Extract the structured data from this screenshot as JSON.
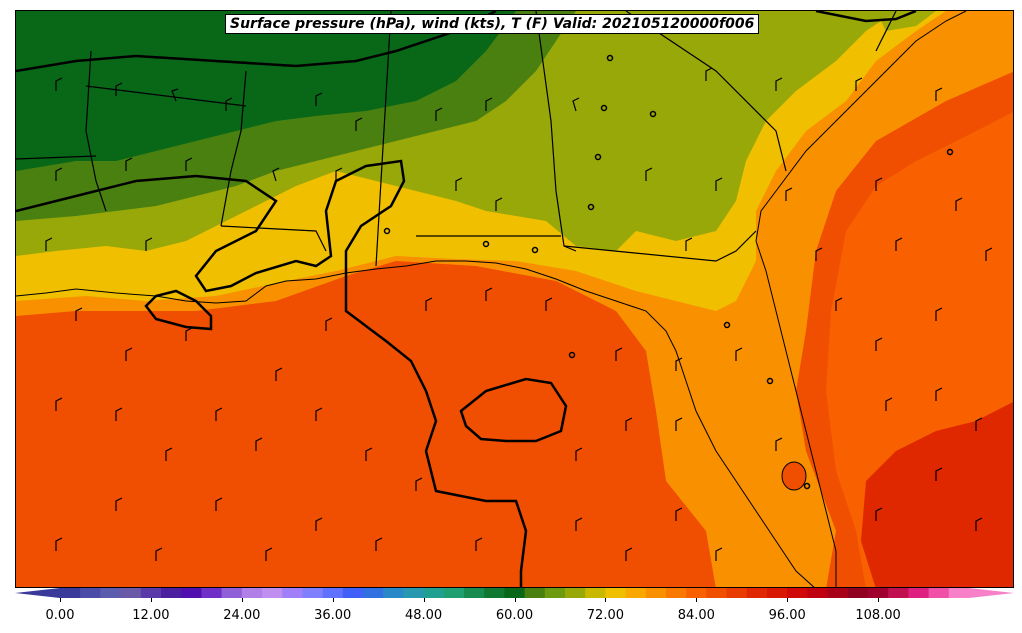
{
  "title": "Surface pressure (hPa), wind (kts), T (F) Valid: 202105120000f006",
  "colorbar": {
    "tick_labels": [
      "0.00",
      "12.00",
      "24.00",
      "36.00",
      "48.00",
      "60.00",
      "72.00",
      "84.00",
      "96.00",
      "108.00"
    ],
    "range": [
      0,
      120
    ],
    "colors": [
      "#3a3a9a",
      "#4b4ba8",
      "#5c5cae",
      "#6a5aa8",
      "#5a3aa8",
      "#4a20a0",
      "#5010b0",
      "#7030c8",
      "#9060d8",
      "#b080e8",
      "#c090f0",
      "#a080f8",
      "#8080ff",
      "#6070ff",
      "#4060f8",
      "#3070e0",
      "#2888c8",
      "#2898b0",
      "#20a090",
      "#20a070",
      "#188c50",
      "#107830",
      "#086818",
      "#4a8010",
      "#6e9a10",
      "#98a808",
      "#c8b800",
      "#f0c000",
      "#f8a800",
      "#f89000",
      "#f87800",
      "#f86000",
      "#f04e00",
      "#e83c00",
      "#e02800",
      "#d81800",
      "#d00808",
      "#c00010",
      "#a80018",
      "#900020",
      "#a00030",
      "#c01050",
      "#e02080",
      "#f050a8",
      "#f880c8"
    ]
  },
  "field_colors": {
    "dark_green": "#086818",
    "green": "#4a8010",
    "olive": "#98a808",
    "yellow": "#f0c000",
    "orange": "#f89000",
    "dark_orange": "#f86000",
    "red_orange": "#f04e00",
    "red": "#e02800"
  }
}
